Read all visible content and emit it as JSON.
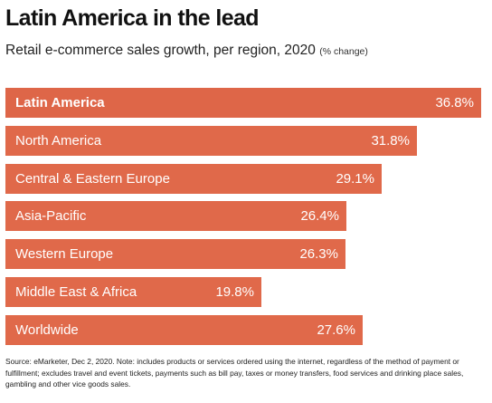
{
  "title": "Latin America in the lead",
  "subtitle": "Retail e-commerce sales growth, per region, 2020",
  "subtitle_unit": "(% change)",
  "colors": {
    "bar": "#e0694a",
    "bar_highlight": "#de6648",
    "text_on_bar": "#ffffff"
  },
  "chart_data": {
    "type": "bar",
    "orientation": "horizontal",
    "categories": [
      "Latin America",
      "North America",
      "Central & Eastern Europe",
      "Asia-Pacific",
      "Western Europe",
      "Middle East & Africa",
      "Worldwide"
    ],
    "values": [
      36.8,
      31.8,
      29.1,
      26.4,
      26.3,
      19.8,
      27.6
    ],
    "value_labels": [
      "36.8%",
      "31.8%",
      "29.1%",
      "26.4%",
      "26.3%",
      "19.8%",
      "27.6%"
    ],
    "highlighted_category": "Latin America",
    "xlim": [
      0,
      36.8
    ],
    "grid": false,
    "legend": "none"
  },
  "footnote": "Source: eMarketer, Dec 2, 2020. Note: includes products or services ordered using the internet, regardless of the method of payment or fulfillment; excludes travel and event tickets, payments such as bill pay, taxes or money transfers, food services and drinking place sales, gambling and other vice goods sales."
}
